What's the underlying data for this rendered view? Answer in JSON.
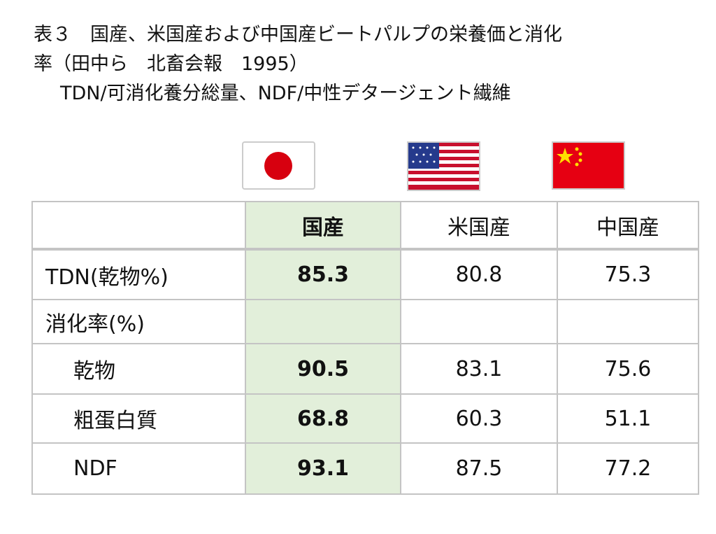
{
  "title": {
    "lines": [
      "表３　国産、米国産および中国産ビートパルプの栄養価と消化",
      "率（田中ら　北畜会報　1995）",
      "TDN/可消化養分総量、NDF/中性デタージェント繊維"
    ]
  },
  "table": {
    "header": [
      "国産",
      "米国産",
      "中国産"
    ],
    "rows": [
      {
        "label": "TDN(乾物%)",
        "values": [
          85.3,
          80.8,
          75.3
        ]
      },
      {
        "label": "消化率(%)",
        "subrows": [
          {
            "label": "乾物",
            "values": [
              90.5,
              83.1,
              75.6
            ]
          },
          {
            "label": "粗蛋白質",
            "values": [
              68.8,
              60.3,
              51.1
            ]
          },
          {
            "label": "NDF",
            "values": [
              93.1,
              87.5,
              77.2
            ]
          }
        ]
      }
    ]
  }
}
